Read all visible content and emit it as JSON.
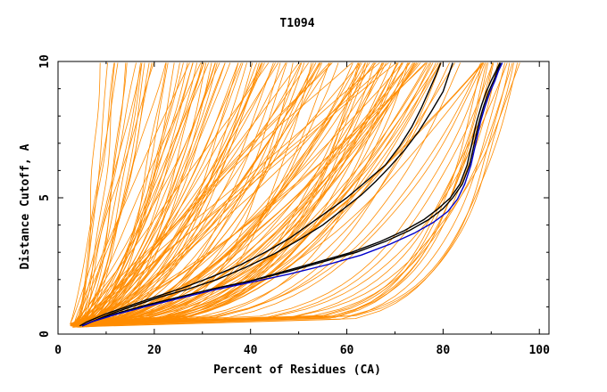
{
  "chart_data": {
    "type": "line",
    "title": "T1094",
    "xlabel": "Percent of Residues (CA)",
    "ylabel": "Distance Cutoff, A",
    "xlim": [
      0,
      102
    ],
    "ylim": [
      0,
      10
    ],
    "x_ticks": [
      0,
      20,
      40,
      60,
      80,
      100
    ],
    "y_ticks": [
      0,
      5,
      10
    ],
    "colors": {
      "background_models": "#ff8c00",
      "highlight_black": "#000000",
      "highlight_blue": "#0000cc"
    },
    "background_series_count": 150,
    "series": [
      {
        "color": "#000000",
        "x": [
          4.5,
          6,
          10,
          15,
          20,
          26,
          32,
          38,
          43,
          48,
          52,
          56,
          60,
          64,
          68,
          71,
          73.5,
          75.5,
          77,
          78.5,
          79.5
        ],
        "y": [
          0.3,
          0.45,
          0.75,
          1.05,
          1.35,
          1.7,
          2.1,
          2.55,
          3.0,
          3.5,
          4.0,
          4.5,
          5.0,
          5.6,
          6.2,
          6.9,
          7.6,
          8.3,
          8.9,
          9.5,
          9.95
        ]
      },
      {
        "color": "#000000",
        "x": [
          5,
          7,
          11,
          16,
          21,
          27,
          33,
          39,
          45,
          50,
          55,
          59,
          63,
          66,
          69,
          72,
          75,
          77.5,
          80,
          82
        ],
        "y": [
          0.3,
          0.45,
          0.75,
          1.05,
          1.35,
          1.65,
          2.0,
          2.45,
          2.95,
          3.45,
          4.0,
          4.55,
          5.1,
          5.6,
          6.15,
          6.75,
          7.45,
          8.15,
          8.9,
          9.95
        ]
      },
      {
        "color": "#000000",
        "x": [
          5,
          7,
          12,
          18,
          25,
          32,
          40,
          48,
          55,
          62,
          68,
          73,
          77,
          80,
          82,
          84,
          85.5,
          86.5,
          87.5,
          88.5,
          89.5,
          90.5,
          91.3,
          92
        ],
        "y": [
          0.3,
          0.45,
          0.75,
          1.05,
          1.35,
          1.65,
          1.95,
          2.3,
          2.65,
          3.0,
          3.4,
          3.8,
          4.2,
          4.6,
          5.0,
          5.5,
          6.2,
          7.0,
          7.8,
          8.4,
          8.9,
          9.3,
          9.65,
          9.95
        ]
      },
      {
        "color": "#000000",
        "x": [
          5,
          7,
          12,
          18,
          25,
          32,
          40,
          47,
          54,
          61,
          67,
          72,
          76,
          79,
          81.5,
          83.5,
          85,
          86,
          87,
          88,
          89,
          90,
          91,
          91.8
        ],
        "y": [
          0.3,
          0.45,
          0.75,
          1.05,
          1.35,
          1.65,
          1.95,
          2.3,
          2.65,
          3.0,
          3.4,
          3.8,
          4.2,
          4.6,
          5.0,
          5.5,
          6.2,
          7.0,
          7.8,
          8.4,
          8.9,
          9.3,
          9.65,
          9.95
        ]
      },
      {
        "color": "#0000cc",
        "x": [
          5,
          7,
          12,
          18,
          25,
          32,
          40,
          48,
          56,
          63,
          69,
          74,
          78,
          81,
          83,
          84.5,
          85.8,
          86.8,
          87.8,
          88.8,
          89.8,
          90.8,
          91.5,
          92.3
        ],
        "y": [
          0.3,
          0.45,
          0.72,
          1.0,
          1.3,
          1.6,
          1.9,
          2.2,
          2.55,
          2.9,
          3.3,
          3.7,
          4.1,
          4.5,
          4.95,
          5.5,
          6.2,
          7.0,
          7.8,
          8.4,
          8.9,
          9.3,
          9.65,
          9.95
        ]
      }
    ]
  }
}
